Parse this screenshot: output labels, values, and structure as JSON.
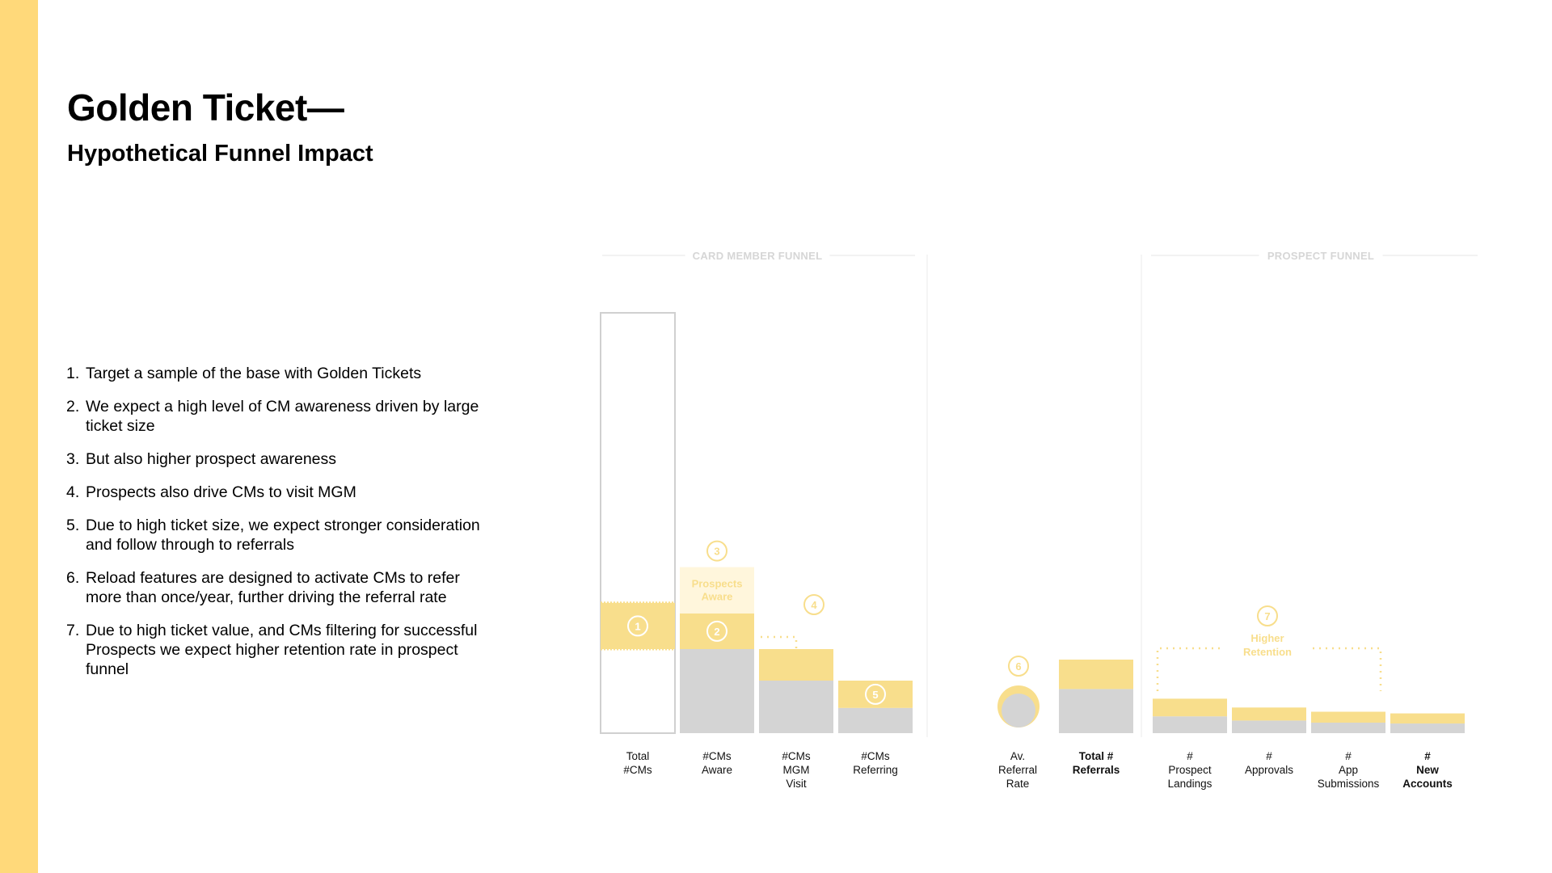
{
  "accent_color": "#FFD97A",
  "header": {
    "title": "Golden Ticket—",
    "subtitle": "Hypothetical Funnel Impact"
  },
  "points": [
    {
      "num": "1.",
      "text": "Target a sample of the base with Golden Tickets"
    },
    {
      "num": "2.",
      "text": "We expect a high level of CM awareness driven by large ticket size"
    },
    {
      "num": "3.",
      "text": "But also higher prospect awareness"
    },
    {
      "num": "4.",
      "text": "Prospects also drive CMs to visit MGM"
    },
    {
      "num": "5.",
      "text": "Due to high ticket size, we expect stronger consideration and follow through to referrals"
    },
    {
      "num": "6.",
      "text": "Reload features are designed to activate CMs to refer more than once/year, further driving the referral rate"
    },
    {
      "num": "7.",
      "text": "Due to high ticket value, and CMs filtering for successful Prospects we expect higher retention rate in prospect funnel"
    }
  ],
  "chart_data": {
    "type": "bar",
    "colors": {
      "base": "#D4D4D4",
      "golden": "#F8DE8C",
      "prospect": "#FFF6DC",
      "outline": "#D0D0D0",
      "muted_text": "#D6D6D6"
    },
    "sections": [
      {
        "label": "CARD MEMBER FUNNEL"
      },
      {
        "label": ""
      },
      {
        "label": "PROSPECT FUNNEL"
      }
    ],
    "ylim": [
      0,
      100
    ],
    "bars": [
      {
        "label": "Total\n#CMs",
        "bold": false,
        "total": 100,
        "base": 0,
        "golden": 0,
        "outline": true,
        "golden_band": [
          20,
          31
        ],
        "marker": "1"
      },
      {
        "label": "#CMs\nAware",
        "bold": false,
        "base": 20,
        "golden": 8.5,
        "prospect": 11,
        "prospect_label": "Prospects\nAware",
        "marker": "2",
        "marker_above": "3"
      },
      {
        "label": "#CMs\nMGM\nVisit",
        "bold": false,
        "base": 12.5,
        "golden": 7.5,
        "marker_side": "4"
      },
      {
        "label": "#CMs\nReferring",
        "bold": false,
        "base": 6,
        "golden": 6.5,
        "marker": "5"
      },
      {
        "label": "Av.\nReferral\nRate",
        "bold": false,
        "type": "circle",
        "marker_above": "6"
      },
      {
        "label": "Total #\nReferrals",
        "bold": true,
        "base": 10.5,
        "golden": 7
      },
      {
        "label": "#\nProspect\nLandings",
        "bold": false,
        "base": 4,
        "golden": 4.2
      },
      {
        "label": "#\nApprovals",
        "bold": false,
        "base": 3,
        "golden": 3.1
      },
      {
        "label": "#\nApp\nSubmissions",
        "bold": false,
        "base": 2.5,
        "golden": 2.6
      },
      {
        "label": "#\nNew\nAccounts",
        "bold": true,
        "base": 2.3,
        "golden": 2.4
      }
    ],
    "annotations": [
      {
        "marker": "7",
        "text": "Higher\nRetention"
      }
    ]
  }
}
